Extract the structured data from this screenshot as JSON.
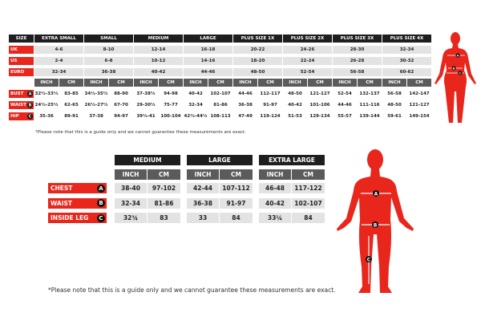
{
  "top_table": {
    "size_label": "SIZE",
    "sizes": [
      "EXTRA SMALL",
      "SMALL",
      "MEDIUM",
      "LARGE",
      "PLUS SIZE 1X",
      "PLUS SIZE 2X",
      "PLUS SIZE 3X",
      "PLUS SIZE 4X"
    ],
    "conversion_rows": [
      {
        "label": "UK",
        "values": [
          "4-6",
          "8-10",
          "12-14",
          "16-18",
          "20-22",
          "24-26",
          "28-30",
          "32-34"
        ]
      },
      {
        "label": "US",
        "values": [
          "2-4",
          "6-8",
          "10-12",
          "14-16",
          "18-20",
          "22-24",
          "26-28",
          "30-32"
        ]
      },
      {
        "label": "EURO",
        "values": [
          "32-34",
          "36-38",
          "40-42",
          "44-46",
          "48-50",
          "52-54",
          "56-58",
          "60-62"
        ]
      }
    ],
    "unit_inch": "INCH",
    "unit_cm": "CM",
    "measure_rows": [
      {
        "label": "BUST",
        "badge": "A",
        "values": [
          [
            "32½-33½",
            "83-85"
          ],
          [
            "34½-35½",
            "88-90"
          ],
          [
            "37-38½",
            "94-98"
          ],
          [
            "40-42",
            "102-107"
          ],
          [
            "44-46",
            "112-117"
          ],
          [
            "48-50",
            "121-127"
          ],
          [
            "52-54",
            "132-137"
          ],
          [
            "56-58",
            "142-147"
          ]
        ]
      },
      {
        "label": "WAIST",
        "badge": "B",
        "values": [
          [
            "24½-25½",
            "62-65"
          ],
          [
            "26½-27½",
            "67-70"
          ],
          [
            "29-30½",
            "75-77"
          ],
          [
            "32-34",
            "81-86"
          ],
          [
            "36-38",
            "91-97"
          ],
          [
            "40-42",
            "101-106"
          ],
          [
            "44-46",
            "111-116"
          ],
          [
            "48-50",
            "121-127"
          ]
        ]
      },
      {
        "label": "HIP",
        "badge": "C",
        "values": [
          [
            "35-36",
            "89-91"
          ],
          [
            "37-38",
            "94-97"
          ],
          [
            "39½-41",
            "100-104"
          ],
          [
            "42½-44½",
            "108-113"
          ],
          [
            "47-49",
            "119-124"
          ],
          [
            "51-53",
            "129-134"
          ],
          [
            "55-57",
            "139-144"
          ],
          [
            "59-61",
            "149-154"
          ]
        ]
      }
    ],
    "note": "*Please note that this is a guide only and we cannot guarantee these measurements are exact."
  },
  "bottom_table": {
    "sizes": [
      "MEDIUM",
      "LARGE",
      "EXTRA LARGE"
    ],
    "unit_inch": "INCH",
    "unit_cm": "CM",
    "rows": [
      {
        "label": "CHEST",
        "badge": "A",
        "values": [
          [
            "38-40",
            "97-102"
          ],
          [
            "42-44",
            "107-112"
          ],
          [
            "46-48",
            "117-122"
          ]
        ]
      },
      {
        "label": "WAIST",
        "badge": "B",
        "values": [
          [
            "32-34",
            "81-86"
          ],
          [
            "36-38",
            "91-97"
          ],
          [
            "40-42",
            "102-107"
          ]
        ]
      },
      {
        "label": "INSIDE LEG",
        "badge": "C",
        "values": [
          [
            "32¾",
            "83"
          ],
          [
            "33",
            "84"
          ],
          [
            "33¼",
            "84"
          ]
        ]
      }
    ],
    "note": "*Please note that this is a guide only and we cannot guarantee these measurements are exact."
  },
  "figures": {
    "female_labels": [
      "A",
      "B",
      "C"
    ],
    "male_labels": [
      "A",
      "B",
      "C"
    ]
  },
  "colors": {
    "accent_red": "#e8261c",
    "header_black": "#1e1e1e",
    "subheader_grey": "#5b5b5b",
    "cell_grey": "#e3e3e3"
  }
}
